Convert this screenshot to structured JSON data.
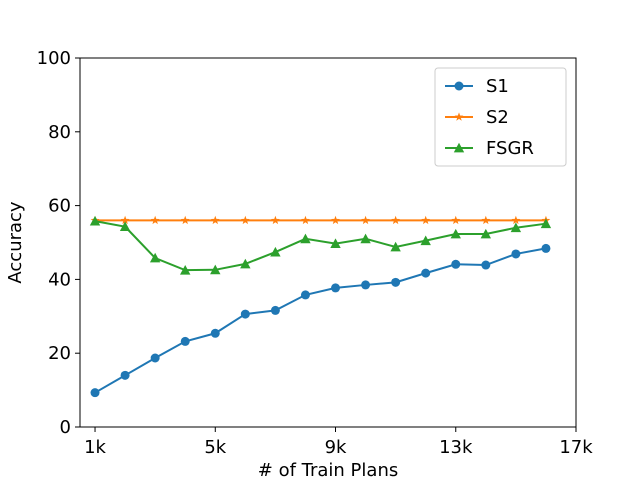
{
  "chart_data": {
    "type": "line",
    "title": "",
    "xlabel": "# of Train Plans",
    "ylabel": "Accuracy",
    "x": [
      1,
      2,
      3,
      4,
      5,
      6,
      7,
      8,
      9,
      10,
      11,
      12,
      13,
      14,
      15,
      16
    ],
    "x_unit": "k",
    "xlim": [
      0.5,
      17
    ],
    "ylim": [
      0,
      100
    ],
    "xticks": [
      1,
      5,
      9,
      13,
      17
    ],
    "xtick_labels": [
      "1k",
      "5k",
      "9k",
      "13k",
      "17k"
    ],
    "yticks": [
      0,
      20,
      40,
      60,
      80,
      100
    ],
    "ytick_labels": [
      "0",
      "20",
      "40",
      "60",
      "80",
      "100"
    ],
    "grid": false,
    "legend_position": "top-right",
    "series": [
      {
        "name": "S1",
        "color": "#1f77b4",
        "marker": "circle",
        "values": [
          9.3,
          14.0,
          18.7,
          23.2,
          25.4,
          30.6,
          31.6,
          35.8,
          37.7,
          38.5,
          39.2,
          41.7,
          44.1,
          43.9,
          46.9,
          48.4
        ]
      },
      {
        "name": "S2",
        "color": "#ff7f0e",
        "marker": "star",
        "values": [
          56,
          56,
          56,
          56,
          56,
          56,
          56,
          56,
          56,
          56,
          56,
          56,
          56,
          56,
          56,
          56
        ]
      },
      {
        "name": "FSGR",
        "color": "#2ca02c",
        "marker": "triangle",
        "values": [
          55.8,
          54.3,
          45.8,
          42.5,
          42.6,
          44.2,
          47.4,
          51.0,
          49.7,
          51.0,
          48.8,
          50.5,
          52.3,
          52.3,
          54.0,
          55.1
        ]
      }
    ]
  }
}
